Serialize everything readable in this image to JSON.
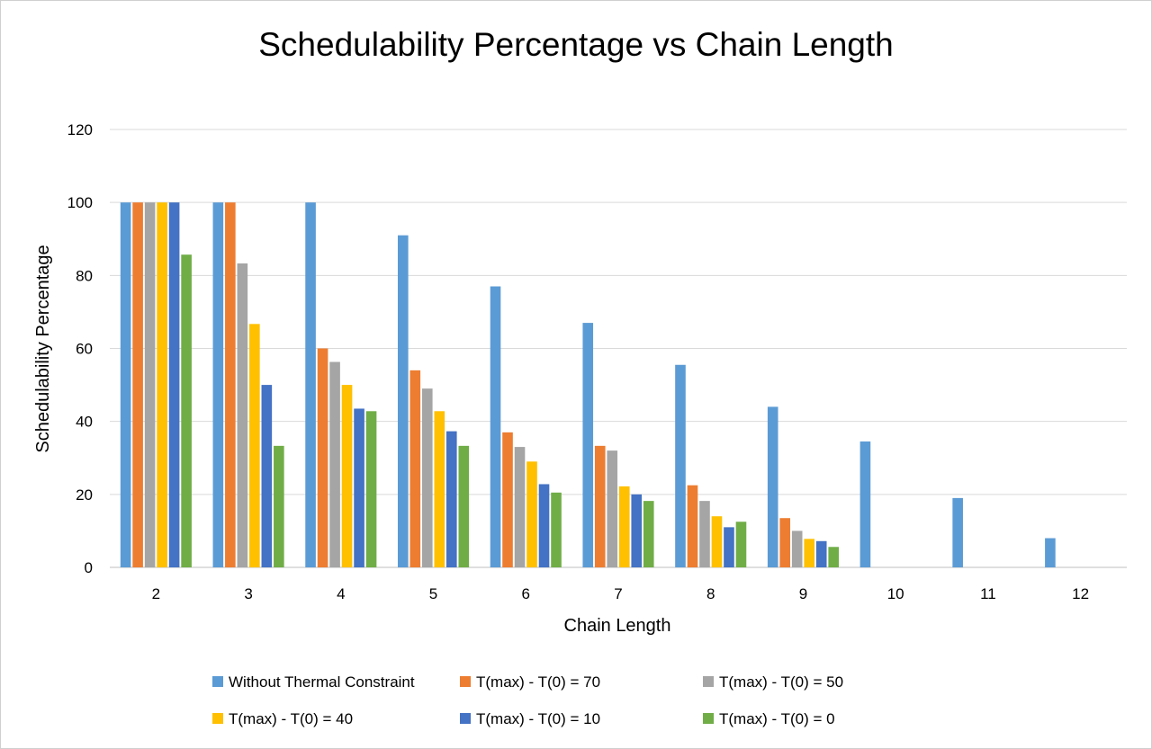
{
  "chart_data": {
    "type": "bar",
    "title": "Schedulability Percentage vs Chain Length",
    "xlabel": "Chain Length",
    "ylabel": "Schedulability Percentage",
    "ylim": [
      0,
      120
    ],
    "yticks": [
      0,
      20,
      40,
      60,
      80,
      100,
      120
    ],
    "grid": true,
    "legend_position": "bottom",
    "categories": [
      "2",
      "3",
      "4",
      "5",
      "6",
      "7",
      "8",
      "9",
      "10",
      "11",
      "12"
    ],
    "series": [
      {
        "name": "Without Thermal Constraint",
        "color": "#5b9bd5",
        "values": [
          100,
          100,
          100,
          91,
          77,
          67,
          55.5,
          44,
          34.5,
          19,
          8
        ]
      },
      {
        "name": "T(max) - T(0) = 70",
        "color": "#ed7d31",
        "values": [
          100,
          100,
          60,
          54,
          37,
          33.3,
          22.5,
          13.5,
          0,
          0,
          0
        ]
      },
      {
        "name": "T(max) - T(0) = 50",
        "color": "#a5a5a5",
        "values": [
          100,
          83.3,
          56.3,
          49,
          33,
          32,
          18.2,
          10,
          0,
          0,
          0
        ]
      },
      {
        "name": "T(max) - T(0) = 40",
        "color": "#ffc000",
        "values": [
          100,
          66.7,
          50,
          42.8,
          29,
          22.2,
          14,
          7.8,
          0,
          0,
          0
        ]
      },
      {
        "name": "T(max) - T(0) = 10",
        "color": "#4472c4",
        "values": [
          100,
          50,
          43.5,
          37.3,
          22.8,
          20,
          11,
          7.2,
          0,
          0,
          0
        ]
      },
      {
        "name": "T(max) - T(0) = 0",
        "color": "#70ad47",
        "values": [
          85.7,
          33.3,
          42.8,
          33.3,
          20.5,
          18.2,
          12.5,
          5.6,
          0,
          0,
          0
        ]
      }
    ]
  }
}
